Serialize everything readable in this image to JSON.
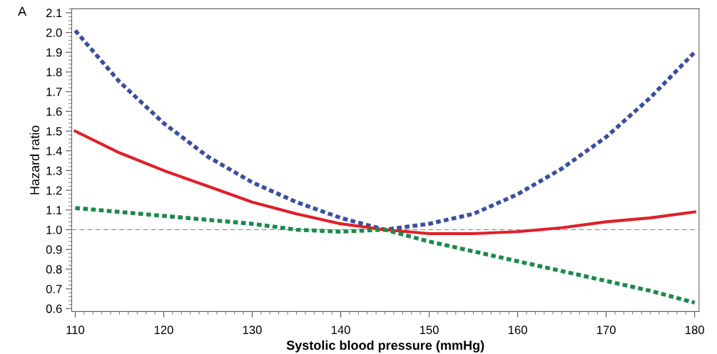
{
  "chart_data": {
    "type": "line",
    "xlabel": "Systolic blood pressure (mmHg)",
    "ylabel": "Hazard ratio",
    "annotations": [
      "A"
    ],
    "xlim": [
      109.6,
      180.5
    ],
    "xticks": [
      110,
      120,
      130,
      140,
      150,
      160,
      170,
      180
    ],
    "ylim": [
      0.585,
      2.12
    ],
    "yticks": [
      {
        "value": 0.6,
        "label": "0.6"
      },
      {
        "value": 0.7,
        "label": "0.7"
      },
      {
        "value": 0.8,
        "label": "0.8"
      },
      {
        "value": 0.9,
        "label": "0.9"
      },
      {
        "value": 1.0,
        "label": "1.0"
      },
      {
        "value": 1.1,
        "label": "1.1"
      },
      {
        "value": 1.2,
        "label": "1.2"
      },
      {
        "value": 1.3,
        "label": "1.3"
      },
      {
        "value": 1.4,
        "label": "1.4"
      },
      {
        "value": 1.5,
        "label": "1.5"
      },
      {
        "value": 1.6,
        "label": "1.6"
      },
      {
        "value": 1.7,
        "label": "1.7"
      },
      {
        "value": 1.8,
        "label": "1.8"
      },
      {
        "value": 1.9,
        "label": "1.9"
      },
      {
        "value": 2.0,
        "label": "2.0"
      },
      {
        "value": 2.1,
        "label": "2.1"
      }
    ],
    "x": [
      110,
      115,
      120,
      125,
      130,
      135,
      140,
      145,
      150,
      155,
      160,
      165,
      170,
      175,
      180
    ],
    "ref_lines": [
      {
        "axis": "y",
        "value": 1.0,
        "color": "#808080",
        "line_style": "dashed"
      }
    ],
    "series": [
      {
        "color": "#3a4fa0",
        "line_style": "dotted",
        "values": [
          2.01,
          1.75,
          1.54,
          1.37,
          1.24,
          1.14,
          1.06,
          1.0,
          1.03,
          1.08,
          1.18,
          1.31,
          1.47,
          1.67,
          1.9
        ]
      },
      {
        "color": "#e0202a",
        "line_style": "solid",
        "values": [
          1.5,
          1.39,
          1.3,
          1.22,
          1.14,
          1.08,
          1.03,
          1.0,
          0.98,
          0.98,
          0.99,
          1.01,
          1.04,
          1.06,
          1.09
        ]
      },
      {
        "color": "#1a8a4a",
        "line_style": "dotted",
        "values": [
          1.11,
          1.09,
          1.07,
          1.05,
          1.03,
          1.0,
          0.99,
          1.0,
          0.94,
          0.89,
          0.84,
          0.79,
          0.74,
          0.69,
          0.63
        ]
      }
    ],
    "grid": false
  }
}
